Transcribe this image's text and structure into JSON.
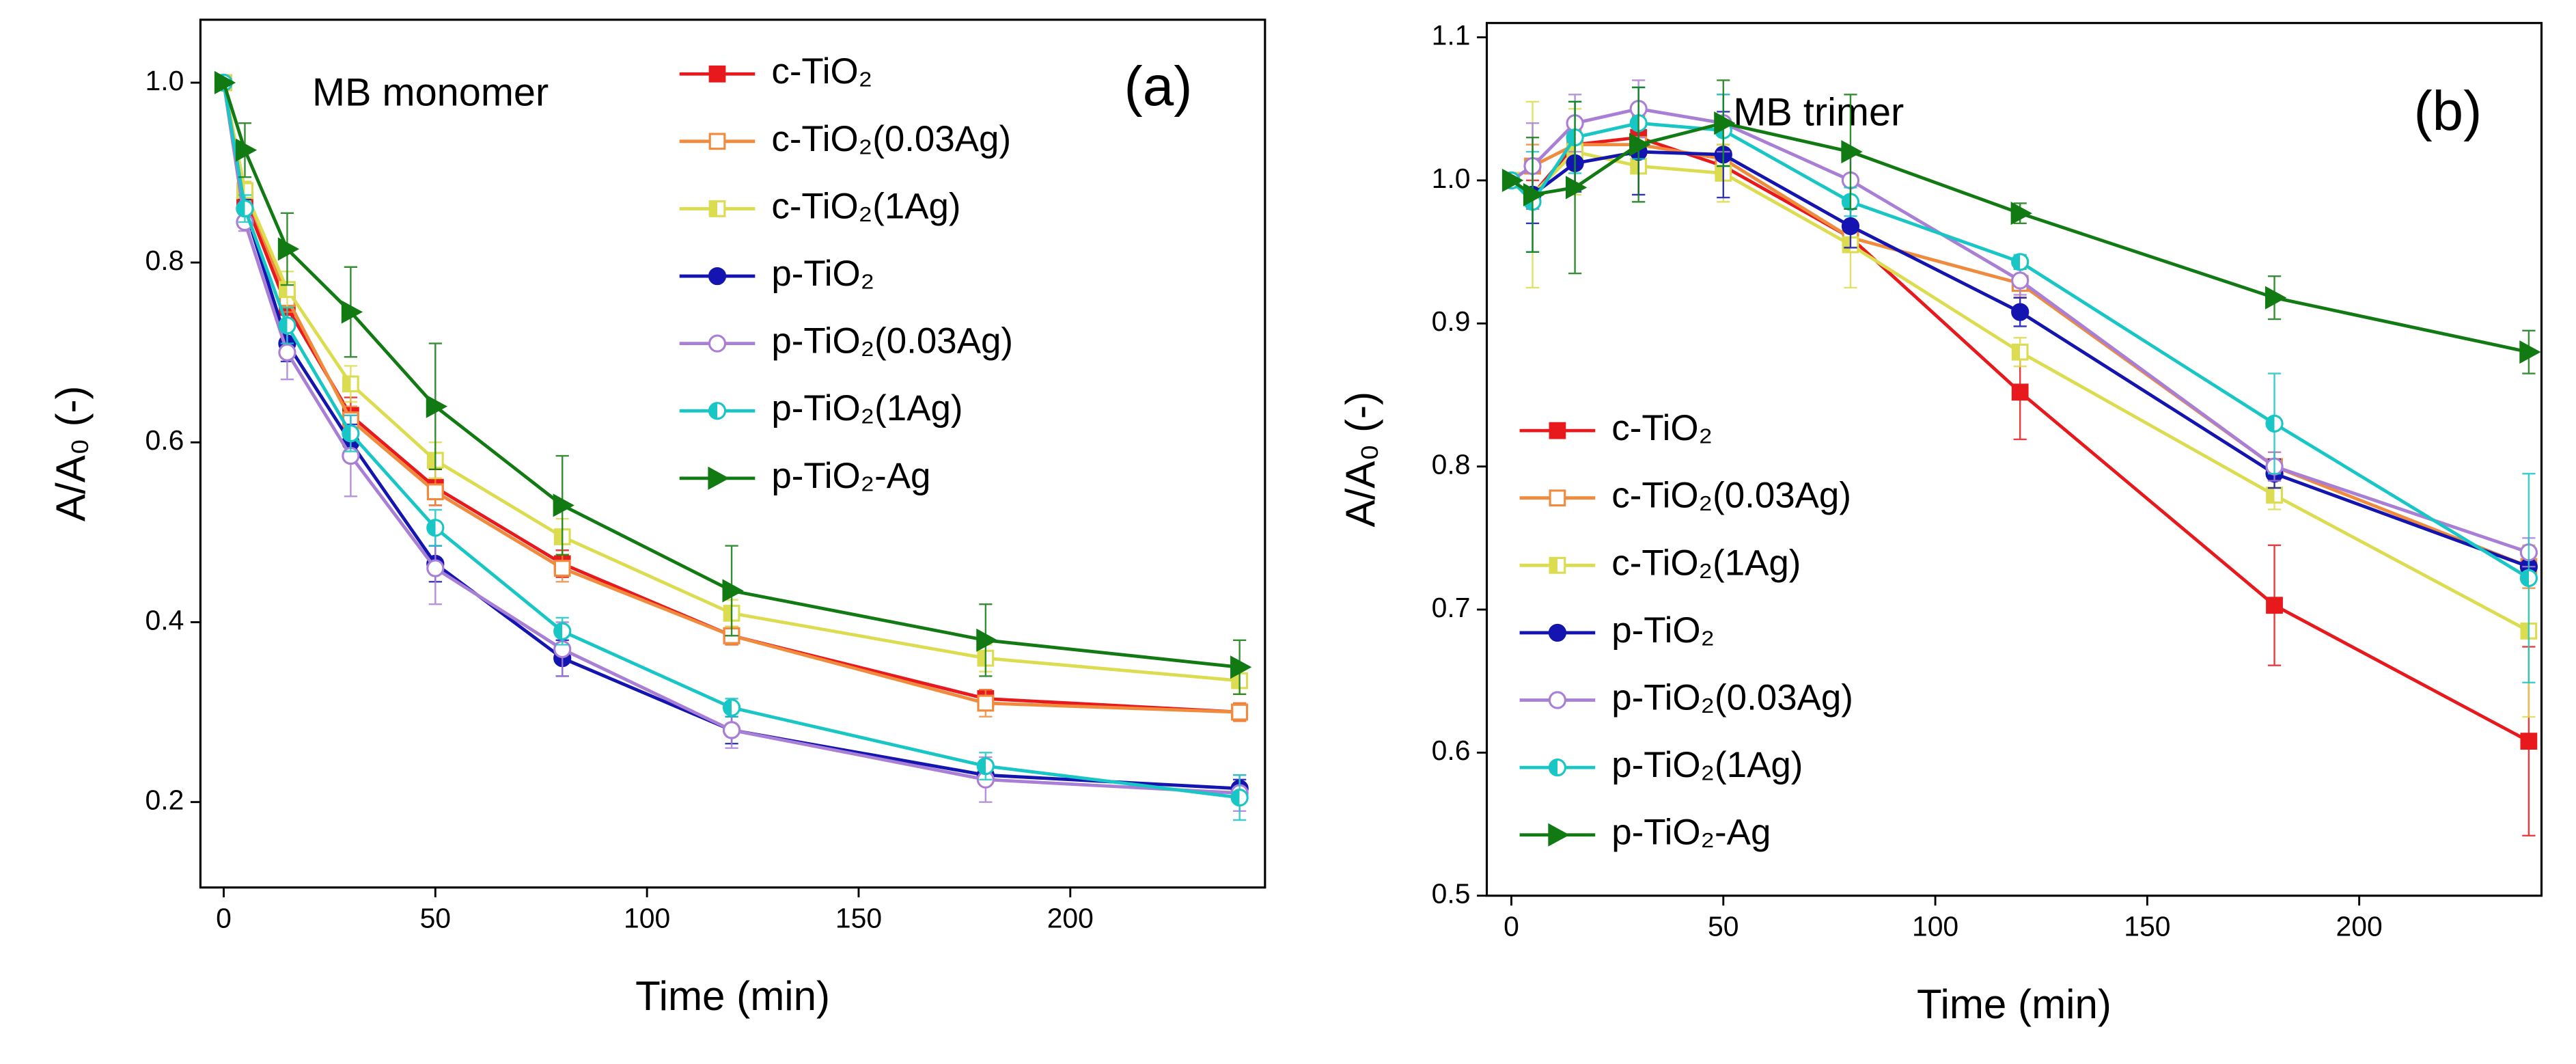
{
  "chart_data": [
    {
      "type": "line",
      "annotation": "MB monomer",
      "panel_label": "(a)",
      "x_label": "Time (min)",
      "y_label": "A/A₀ (-)",
      "x": [
        0,
        5,
        15,
        30,
        50,
        80,
        120,
        180,
        240
      ],
      "xlim": [
        -5.5,
        246
      ],
      "ylim": [
        0.105,
        1.07
      ],
      "xticks": [
        0,
        50,
        100,
        150,
        200
      ],
      "yticks": [
        0.2,
        0.4,
        0.6,
        0.8,
        {
          "value": 1,
          "label": "1.0"
        }
      ],
      "legend": "upper center",
      "series": [
        {
          "name": "c-TiO₂",
          "color": "#e8191c",
          "marker": "square",
          "values": [
            1.0,
            0.87,
            0.75,
            0.63,
            0.55,
            0.465,
            0.385,
            0.315,
            0.3
          ],
          "errors": [
            0,
            0.01,
            0.015,
            0.02,
            0.02,
            0.015,
            0.01,
            0.01,
            0.01
          ]
        },
        {
          "name": "c-TiO₂(0.03Ag)",
          "color": "#f08a3c",
          "marker": "square-open",
          "values": [
            1.0,
            0.88,
            0.76,
            0.625,
            0.545,
            0.46,
            0.385,
            0.31,
            0.3
          ],
          "errors": [
            0,
            0.01,
            0.015,
            0.015,
            0.015,
            0.015,
            0.01,
            0.015,
            0.01
          ]
        },
        {
          "name": "c-TiO₂(1Ag)",
          "color": "#dcdc50",
          "marker": "square-half",
          "values": [
            1.0,
            0.88,
            0.77,
            0.665,
            0.58,
            0.495,
            0.41,
            0.36,
            0.335
          ],
          "errors": [
            0,
            0.01,
            0.02,
            0.02,
            0.02,
            0.02,
            0.015,
            0.015,
            0.015
          ]
        },
        {
          "name": "p-TiO₂",
          "color": "#1414b0",
          "marker": "circle",
          "values": [
            1.0,
            0.86,
            0.71,
            0.6,
            0.465,
            0.36,
            0.28,
            0.23,
            0.215
          ],
          "errors": [
            0,
            0.01,
            0.02,
            0.02,
            0.02,
            0.02,
            0.015,
            0.01,
            0.01
          ]
        },
        {
          "name": "p-TiO₂(0.03Ag)",
          "color": "#a97fd6",
          "marker": "circle-open",
          "values": [
            1.0,
            0.845,
            0.7,
            0.585,
            0.46,
            0.37,
            0.28,
            0.225,
            0.21
          ],
          "errors": [
            0,
            0.01,
            0.03,
            0.045,
            0.04,
            0.03,
            0.02,
            0.025,
            0.02
          ]
        },
        {
          "name": "p-TiO₂(1Ag)",
          "color": "#19c6c6",
          "marker": "circle-half",
          "values": [
            1.0,
            0.86,
            0.73,
            0.61,
            0.505,
            0.39,
            0.305,
            0.24,
            0.205
          ],
          "errors": [
            0,
            0.015,
            0.02,
            0.02,
            0.02,
            0.015,
            0.01,
            0.015,
            0.025
          ]
        },
        {
          "name": "p-TiO₂-Ag",
          "color": "#127a12",
          "marker": "triangle-right",
          "values": [
            1.0,
            0.925,
            0.815,
            0.745,
            0.64,
            0.53,
            0.435,
            0.38,
            0.35
          ],
          "errors": [
            0,
            0.03,
            0.04,
            0.05,
            0.07,
            0.055,
            0.05,
            0.04,
            0.03
          ]
        }
      ]
    },
    {
      "type": "line",
      "annotation": "MB trimer",
      "panel_label": "(b)",
      "x_label": "Time (min)",
      "y_label": "A/A₀ (-)",
      "x": [
        0,
        5,
        15,
        30,
        50,
        80,
        120,
        180,
        240
      ],
      "xlim": [
        -5.8,
        243
      ],
      "ylim": [
        0.5,
        1.11
      ],
      "xticks": [
        0,
        50,
        100,
        150,
        200
      ],
      "yticks": [
        0.5,
        0.6,
        0.7,
        0.8,
        0.9,
        {
          "value": 1,
          "label": "1.0"
        },
        1.1
      ],
      "legend": "lower left",
      "series": [
        {
          "name": "c-TiO₂",
          "color": "#e8191c",
          "marker": "square",
          "values": [
            1.0,
            0.99,
            1.025,
            1.03,
            1.01,
            0.96,
            0.852,
            0.703,
            0.608
          ],
          "errors": [
            0,
            0.01,
            0.01,
            0.015,
            0.01,
            0.01,
            0.033,
            0.042,
            0.066
          ]
        },
        {
          "name": "c-TiO₂(0.03Ag)",
          "color": "#f08a3c",
          "marker": "square-open",
          "values": [
            1.0,
            1.01,
            1.025,
            1.025,
            1.015,
            0.96,
            0.928,
            0.8,
            0.73
          ],
          "errors": [
            0,
            0.015,
            0.01,
            0.02,
            0.01,
            0.01,
            0.01,
            0.01,
            0.015
          ]
        },
        {
          "name": "c-TiO₂(1Ag)",
          "color": "#dcdc50",
          "marker": "square-half",
          "values": [
            1.0,
            0.99,
            1.02,
            1.01,
            1.005,
            0.955,
            0.88,
            0.78,
            0.685
          ],
          "errors": [
            0,
            0.065,
            0.03,
            0.02,
            0.02,
            0.03,
            0.01,
            0.01,
            0.06
          ]
        },
        {
          "name": "p-TiO₂",
          "color": "#1414b0",
          "marker": "circle",
          "values": [
            1.0,
            0.99,
            1.012,
            1.02,
            1.018,
            0.968,
            0.908,
            0.795,
            0.73
          ],
          "errors": [
            0,
            0.02,
            0.02,
            0.03,
            0.03,
            0.015,
            0.01,
            0.01,
            0.01
          ]
        },
        {
          "name": "p-TiO₂(0.03Ag)",
          "color": "#a97fd6",
          "marker": "circle-open",
          "values": [
            1.0,
            1.01,
            1.04,
            1.05,
            1.04,
            1.0,
            0.93,
            0.8,
            0.74
          ],
          "errors": [
            0,
            0.03,
            0.02,
            0.02,
            0.02,
            0.02,
            0.01,
            0.01,
            0.01
          ]
        },
        {
          "name": "p-TiO₂(1Ag)",
          "color": "#19c6c6",
          "marker": "circle-half",
          "values": [
            1.0,
            0.985,
            1.03,
            1.04,
            1.035,
            0.985,
            0.943,
            0.83,
            0.722
          ],
          "errors": [
            0,
            0.035,
            0.025,
            0.025,
            0.025,
            0.01,
            0.005,
            0.035,
            0.073
          ]
        },
        {
          "name": "p-TiO₂-Ag",
          "color": "#127a12",
          "marker": "triangle-right",
          "values": [
            1.0,
            0.99,
            0.995,
            1.025,
            1.04,
            1.02,
            0.977,
            0.918,
            0.88
          ],
          "errors": [
            0,
            0.04,
            0.06,
            0.04,
            0.03,
            0.04,
            0.007,
            0.015,
            0.015
          ]
        }
      ]
    }
  ]
}
